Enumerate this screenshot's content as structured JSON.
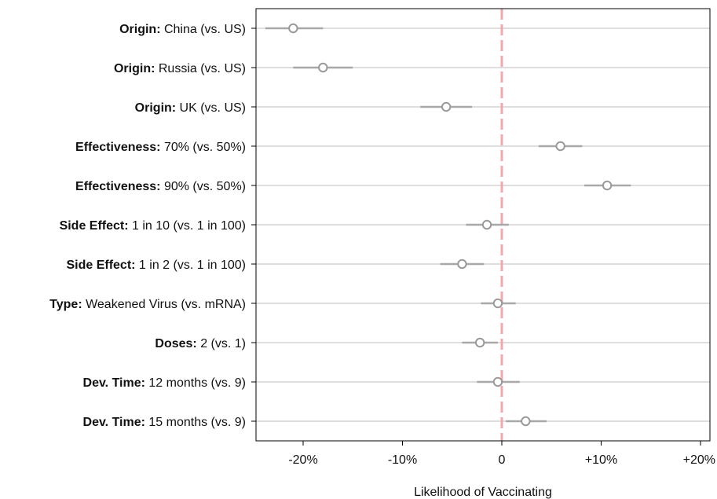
{
  "chart_data": {
    "type": "scatter",
    "title": "",
    "xlabel": "Likelihood of Vaccinating",
    "ylabel": "",
    "xlim": [
      -25,
      21
    ],
    "xticks": [
      -20,
      -10,
      0,
      10,
      20
    ],
    "xtick_labels": [
      "-20%",
      "-10%",
      "0",
      "+10%",
      "+20%"
    ],
    "grid": "horizontal",
    "reference_line": {
      "x": 0,
      "color": "#f2a8a8",
      "style": "dashed"
    },
    "colors": {
      "point": "#999999",
      "error_bar": "#a8a8a8",
      "gridline": "#dedede",
      "frame": "#000000"
    },
    "points": [
      {
        "attribute": "Origin:",
        "level": " China (vs. US)",
        "estimate": -21.0,
        "ci": [
          -23.8,
          -18.0
        ]
      },
      {
        "attribute": "Origin:",
        "level": " Russia (vs. US)",
        "estimate": -18.0,
        "ci": [
          -21.0,
          -15.0
        ]
      },
      {
        "attribute": "Origin:",
        "level": " UK (vs. US)",
        "estimate": -5.6,
        "ci": [
          -8.2,
          -3.0
        ]
      },
      {
        "attribute": "Effectiveness:",
        "level": " 70% (vs. 50%)",
        "estimate": 5.9,
        "ci": [
          3.7,
          8.1
        ]
      },
      {
        "attribute": "Effectiveness:",
        "level": " 90% (vs. 50%)",
        "estimate": 10.6,
        "ci": [
          8.3,
          13.0
        ]
      },
      {
        "attribute": "Side Effect:",
        "level": " 1 in 10 (vs. 1 in 100)",
        "estimate": -1.5,
        "ci": [
          -3.6,
          0.7
        ]
      },
      {
        "attribute": "Side Effect:",
        "level": " 1 in 2 (vs. 1 in 100)",
        "estimate": -4.0,
        "ci": [
          -6.2,
          -1.8
        ]
      },
      {
        "attribute": "Type:",
        "level": " Weakened Virus (vs. mRNA)",
        "estimate": -0.4,
        "ci": [
          -2.1,
          1.4
        ]
      },
      {
        "attribute": "Doses:",
        "level": " 2 (vs. 1)",
        "estimate": -2.2,
        "ci": [
          -4.0,
          -0.4
        ]
      },
      {
        "attribute": "Dev. Time:",
        "level": " 12 months (vs. 9)",
        "estimate": -0.4,
        "ci": [
          -2.5,
          1.8
        ]
      },
      {
        "attribute": "Dev. Time:",
        "level": " 15 months (vs. 9)",
        "estimate": 2.4,
        "ci": [
          0.4,
          4.5
        ]
      }
    ]
  }
}
